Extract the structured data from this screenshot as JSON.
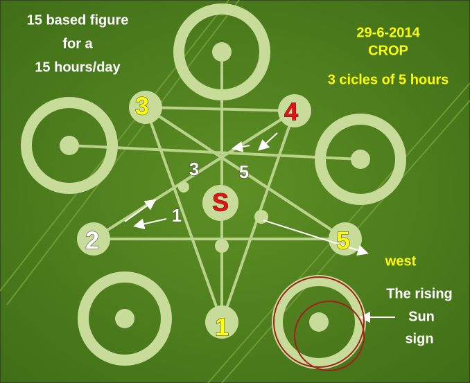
{
  "caption": [
    "15 based figure",
    "for a",
    "15 hours/day"
  ],
  "date_block": [
    "29-6-2014",
    "CROP",
    "3 cicles of 5 hours"
  ],
  "figure_labels": [
    "3",
    "4",
    "3",
    "5",
    "S",
    "1",
    "2",
    "5",
    "1"
  ],
  "direction": "west",
  "sun_note": [
    "The rising",
    "Sun",
    "sign"
  ]
}
